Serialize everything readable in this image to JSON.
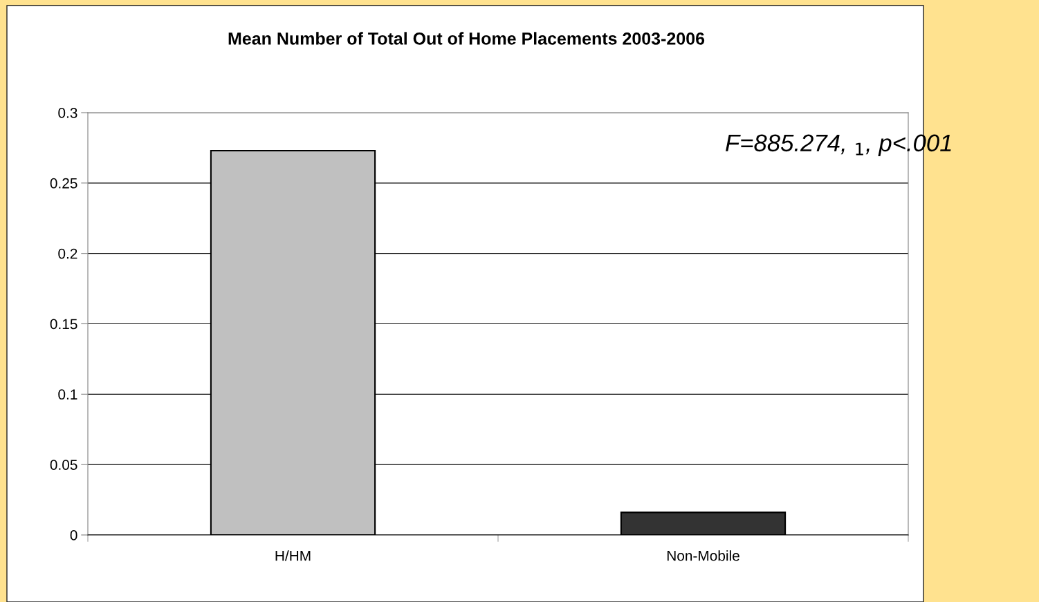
{
  "chart_data": {
    "type": "bar",
    "title": "Mean Number of Total Out of Home Placements 2003-2006",
    "categories": [
      "H/HM",
      "Non-Mobile"
    ],
    "values": [
      0.273,
      0.016
    ],
    "colors": [
      "#c0c0c0",
      "#333333"
    ],
    "ylim": [
      0,
      0.3
    ],
    "yticks": [
      {
        "value": 0,
        "label": "0"
      },
      0.05,
      0.1,
      0.15,
      0.2,
      0.25,
      0.3
    ],
    "grid": "y",
    "legend": false,
    "annotations": [
      "F=885.274, $_{1}$, p<.001"
    ]
  }
}
